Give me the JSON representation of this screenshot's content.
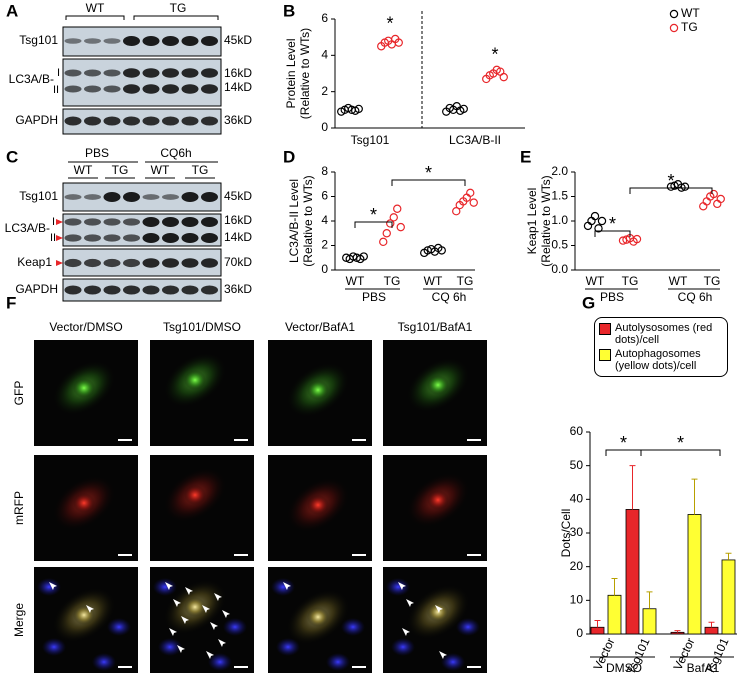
{
  "figure": {
    "panel_letters": [
      "A",
      "B",
      "C",
      "D",
      "E",
      "F",
      "G"
    ],
    "blot_a": {
      "groups": [
        "WT",
        "TG"
      ],
      "rows": [
        "Tsg101",
        "LC3A/B-",
        "GAPDH"
      ],
      "bands": [
        "I",
        "II"
      ],
      "sizes": [
        "45kD",
        "16kD",
        "14kD",
        "36kD"
      ]
    },
    "blot_c": {
      "treatments": [
        "PBS",
        "CQ6h"
      ],
      "groups": [
        "WT",
        "TG",
        "WT",
        "TG"
      ],
      "rows": [
        "Tsg101",
        "LC3A/B-",
        "Keap1",
        "GAPDH"
      ],
      "bands": [
        "I",
        "II"
      ],
      "sizes": [
        "45kD",
        "16kD",
        "14kD",
        "70kD",
        "36kD"
      ]
    },
    "imaging": {
      "columns": [
        "Vector/DMSO",
        "Tsg101/DMSO",
        "Vector/BafA1",
        "Tsg101/BafA1"
      ],
      "rows": [
        "GFP",
        "mRFP",
        "Merge"
      ]
    }
  },
  "chart_data": [
    {
      "type": "strip",
      "categories": [
        "Tsg101",
        "LC3A/B-II"
      ],
      "y_label": [
        "Protein Level",
        "(Relative to WTs)"
      ],
      "ylim": [
        0,
        6
      ],
      "yticks": [
        0,
        2,
        4,
        6
      ],
      "legend": "upper right",
      "annotations": [
        "*",
        "*"
      ],
      "series": [
        {
          "name": "WT",
          "color": "#000000",
          "values": [
            [
              0.9,
              1.0,
              1.1,
              1.0,
              0.95,
              1.05
            ],
            [
              0.9,
              1.1,
              1.0,
              1.2,
              0.95,
              1.05
            ]
          ]
        },
        {
          "name": "TG",
          "color": "#e8262a",
          "values": [
            [
              4.5,
              4.7,
              4.8,
              4.6,
              4.9,
              4.7
            ],
            [
              2.7,
              2.9,
              3.0,
              3.2,
              3.1,
              2.8
            ]
          ]
        }
      ]
    },
    {
      "type": "strip",
      "categories": [
        "WT",
        "TG",
        "WT",
        "TG"
      ],
      "groups": [
        "PBS",
        "CQ 6h"
      ],
      "y_label": [
        "LC3A/B-II  Level",
        "(Relative to WTs)"
      ],
      "ylim": [
        0,
        8
      ],
      "yticks": [
        0,
        2,
        4,
        6,
        8
      ],
      "annotations": [
        "*",
        "*"
      ],
      "colors": [
        "#000000",
        "#e8262a",
        "#000000",
        "#e8262a"
      ],
      "values": [
        [
          1.0,
          0.9,
          1.1,
          1.0,
          0.9,
          1.1
        ],
        [
          2.3,
          3.0,
          3.8,
          4.3,
          5.0,
          3.5
        ],
        [
          1.4,
          1.6,
          1.7,
          1.5,
          1.8,
          1.6
        ],
        [
          4.8,
          5.3,
          5.6,
          5.9,
          6.3,
          5.5
        ]
      ]
    },
    {
      "type": "strip",
      "categories": [
        "WT",
        "TG",
        "WT",
        "TG"
      ],
      "groups": [
        "PBS",
        "CQ 6h"
      ],
      "y_label": [
        "Keap1  Level",
        "(Relative to WTs)"
      ],
      "ylim": [
        0,
        2
      ],
      "yticks": [
        {
          "value": 0,
          "label": "0.0"
        },
        {
          "value": 0.5,
          "label": "0.5"
        },
        {
          "value": 1,
          "label": "1.0"
        },
        {
          "value": 1.5,
          "label": "1.5"
        },
        {
          "value": 2,
          "label": "2.0"
        }
      ],
      "annotations": [
        "*",
        "*"
      ],
      "colors": [
        "#000000",
        "#e8262a",
        "#000000",
        "#e8262a"
      ],
      "values": [
        [
          0.9,
          1.0,
          1.1,
          0.85,
          1.0
        ],
        [
          0.6,
          0.62,
          0.65,
          0.58,
          0.63
        ],
        [
          1.7,
          1.72,
          1.75,
          1.68,
          1.7
        ],
        [
          1.3,
          1.4,
          1.5,
          1.55,
          1.35,
          1.45
        ]
      ]
    },
    {
      "type": "bar",
      "categories": [
        "Vector",
        "Tsg101",
        "Vector",
        "Tsg101"
      ],
      "groups": [
        "DMSO",
        "BafA1"
      ],
      "y_label": "Dots/Cell",
      "ylim": [
        0,
        60
      ],
      "yticks": [
        0,
        10,
        20,
        30,
        40,
        50,
        60
      ],
      "annotations": [
        "*",
        "*"
      ],
      "legend": "top",
      "series": [
        {
          "name": "Autolysosomes (red dots)/cell",
          "color": "#e8262a",
          "values": [
            2,
            37,
            0.5,
            2
          ],
          "errors": [
            2,
            13,
            0.5,
            1.5
          ]
        },
        {
          "name": "Autophagosomes (yellow dots)/cell",
          "color": "#ffff33",
          "values": [
            11.5,
            7.5,
            35.5,
            22
          ],
          "errors": [
            5,
            5,
            10.5,
            2
          ]
        }
      ]
    }
  ]
}
